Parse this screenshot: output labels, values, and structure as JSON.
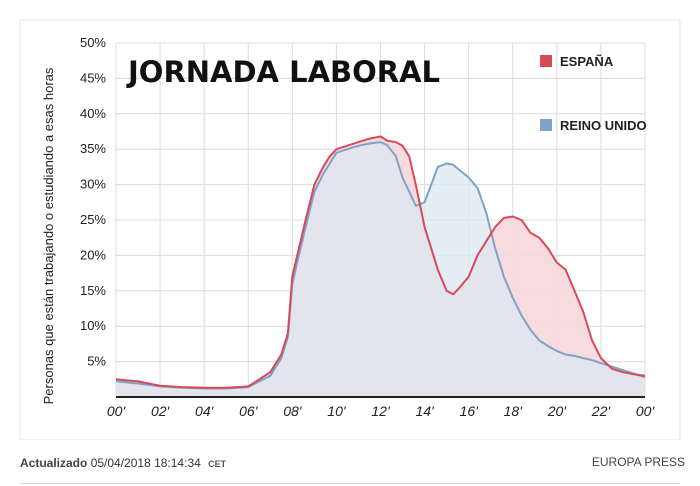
{
  "chart_data": {
    "type": "area",
    "title": "JORNADA LABORAL",
    "ylabel": "Personas que están trabajando o estudiando a esas horas",
    "xlabel": "",
    "x_tick_labels": [
      "00'",
      "02'",
      "04'",
      "06'",
      "08'",
      "10'",
      "12'",
      "14'",
      "16'",
      "18'",
      "20'",
      "22'",
      "00'"
    ],
    "y_tick_labels": [
      "5%",
      "10%",
      "15%",
      "20%",
      "25%",
      "30%",
      "35%",
      "40%",
      "45%",
      "50%"
    ],
    "xlim": [
      0,
      24
    ],
    "ylim": [
      0,
      50
    ],
    "grid": true,
    "legend_position": "right",
    "series": [
      {
        "name": "ESPAÑA",
        "color": "#d84a57",
        "fill": "#f6d7dc",
        "x": [
          0,
          1,
          2,
          3,
          4,
          5,
          6,
          6.5,
          7,
          7.5,
          7.8,
          8,
          8.3,
          8.6,
          9,
          9.4,
          9.7,
          10,
          10.5,
          11,
          11.5,
          12,
          12.3,
          12.7,
          13,
          13.3,
          13.6,
          14,
          14.3,
          14.6,
          15,
          15.3,
          15.6,
          16,
          16.4,
          16.8,
          17.2,
          17.6,
          18,
          18.4,
          18.8,
          19.2,
          19.6,
          20,
          20.4,
          20.8,
          21.2,
          21.6,
          22,
          22.5,
          23,
          23.5,
          24
        ],
        "y": [
          2.5,
          2.2,
          1.6,
          1.4,
          1.3,
          1.3,
          1.5,
          2.5,
          3.5,
          6,
          9,
          17,
          21,
          25,
          30,
          32.5,
          34,
          35,
          35.5,
          36,
          36.5,
          36.8,
          36.2,
          36,
          35.5,
          34,
          30,
          24,
          21,
          18,
          15,
          14.5,
          15.5,
          17,
          20,
          22,
          24,
          25.3,
          25.5,
          25,
          23.2,
          22.5,
          21,
          19,
          18,
          15,
          12,
          8,
          5.5,
          4,
          3.5,
          3.2,
          3
        ],
        "curve": [
          [
            0,
            2.5
          ],
          [
            1,
            2.2
          ],
          [
            2,
            1.6
          ],
          [
            3,
            1.4
          ],
          [
            4,
            1.3
          ],
          [
            5,
            1.3
          ],
          [
            6,
            1.5
          ],
          [
            6.5,
            2.5
          ],
          [
            7,
            3.5
          ],
          [
            7.5,
            6
          ],
          [
            7.8,
            9
          ],
          [
            8,
            17
          ],
          [
            8.3,
            21
          ],
          [
            8.6,
            25
          ],
          [
            9,
            30
          ],
          [
            9.4,
            32.5
          ],
          [
            9.7,
            34
          ],
          [
            10,
            35
          ],
          [
            10.5,
            35.5
          ],
          [
            11,
            36
          ],
          [
            11.5,
            36.5
          ],
          [
            12,
            36.8
          ],
          [
            12.3,
            36.2
          ],
          [
            12.7,
            36
          ],
          [
            13,
            35.5
          ],
          [
            13.3,
            34
          ],
          [
            13.6,
            30
          ],
          [
            14,
            24
          ],
          [
            14.3,
            21
          ],
          [
            14.6,
            18
          ],
          [
            15,
            15
          ],
          [
            15.3,
            14.5
          ],
          [
            15.6,
            15.5
          ],
          [
            16,
            17
          ],
          [
            16.4,
            20
          ],
          [
            16.8,
            22
          ],
          [
            17.2,
            24
          ],
          [
            17.6,
            25.3
          ],
          [
            18,
            25.5
          ],
          [
            18.4,
            25
          ],
          [
            18.8,
            23.2
          ],
          [
            19.2,
            22.5
          ],
          [
            19.6,
            21
          ],
          [
            20,
            19
          ],
          [
            20.4,
            18
          ],
          [
            20.8,
            15
          ],
          [
            21.2,
            12
          ],
          [
            21.6,
            8
          ],
          [
            22,
            5.5
          ],
          [
            22.5,
            4
          ],
          [
            23,
            3.5
          ],
          [
            23.5,
            3.2
          ],
          [
            24,
            3
          ]
        ]
      },
      {
        "name": "REINO UNIDO",
        "color": "#7ea3c8",
        "fill": "#dce7f1",
        "x": [
          0,
          1,
          2,
          3,
          4,
          5,
          6,
          6.5,
          7,
          7.5,
          7.8,
          8,
          8.3,
          8.6,
          9,
          9.4,
          9.7,
          10,
          10.5,
          11,
          11.5,
          12,
          12.3,
          12.7,
          13,
          13.3,
          13.6,
          14,
          14.3,
          14.6,
          15,
          15.3,
          15.6,
          16,
          16.4,
          16.8,
          17.2,
          17.6,
          18,
          18.4,
          18.8,
          19.2,
          19.6,
          20,
          20.4,
          20.8,
          21.2,
          21.6,
          22,
          22.5,
          23,
          23.5,
          24
        ],
        "y": [
          2.2,
          1.9,
          1.5,
          1.3,
          1.2,
          1.2,
          1.4,
          2.2,
          3,
          5.5,
          8.5,
          16,
          20,
          24,
          29,
          31.5,
          33,
          34.5,
          35,
          35.5,
          35.8,
          36,
          35.6,
          34,
          31,
          29,
          27,
          27.5,
          30,
          32.5,
          33,
          32.8,
          32,
          31,
          29.5,
          26,
          21,
          17,
          14,
          11.5,
          9.5,
          8,
          7.2,
          6.5,
          6,
          5.8,
          5.5,
          5.2,
          4.8,
          4.3,
          3.8,
          3.3,
          2.8
        ],
        "curve": [
          [
            0,
            2.2
          ],
          [
            1,
            1.9
          ],
          [
            2,
            1.5
          ],
          [
            3,
            1.3
          ],
          [
            4,
            1.2
          ],
          [
            5,
            1.2
          ],
          [
            6,
            1.4
          ],
          [
            6.5,
            2.2
          ],
          [
            7,
            3
          ],
          [
            7.5,
            5.5
          ],
          [
            7.8,
            8.5
          ],
          [
            8,
            16
          ],
          [
            8.3,
            20
          ],
          [
            8.6,
            24
          ],
          [
            9,
            29
          ],
          [
            9.4,
            31.5
          ],
          [
            9.7,
            33
          ],
          [
            10,
            34.5
          ],
          [
            10.5,
            35
          ],
          [
            11,
            35.5
          ],
          [
            11.5,
            35.8
          ],
          [
            12,
            36
          ],
          [
            12.3,
            35.6
          ],
          [
            12.7,
            34
          ],
          [
            13,
            31
          ],
          [
            13.3,
            29
          ],
          [
            13.6,
            27
          ],
          [
            14,
            27.5
          ],
          [
            14.3,
            30
          ],
          [
            14.6,
            32.5
          ],
          [
            15,
            33
          ],
          [
            15.3,
            32.8
          ],
          [
            15.6,
            32
          ],
          [
            16,
            31
          ],
          [
            16.4,
            29.5
          ],
          [
            16.8,
            26
          ],
          [
            17.2,
            21
          ],
          [
            17.6,
            17
          ],
          [
            18,
            14
          ],
          [
            18.4,
            11.5
          ],
          [
            18.8,
            9.5
          ],
          [
            19.2,
            8
          ],
          [
            19.6,
            7.2
          ],
          [
            20,
            6.5
          ],
          [
            20.4,
            6
          ],
          [
            20.8,
            5.8
          ],
          [
            21.2,
            5.5
          ],
          [
            21.6,
            5.2
          ],
          [
            22,
            4.8
          ],
          [
            22.5,
            4.3
          ],
          [
            23,
            3.8
          ],
          [
            23.5,
            3.3
          ],
          [
            24,
            2.8
          ]
        ]
      }
    ]
  },
  "footer": {
    "updated_label": "Actualizado",
    "updated_value": "05/04/2018 18:14:34",
    "timezone": "CET",
    "credit": "EUROPA PRESS"
  }
}
